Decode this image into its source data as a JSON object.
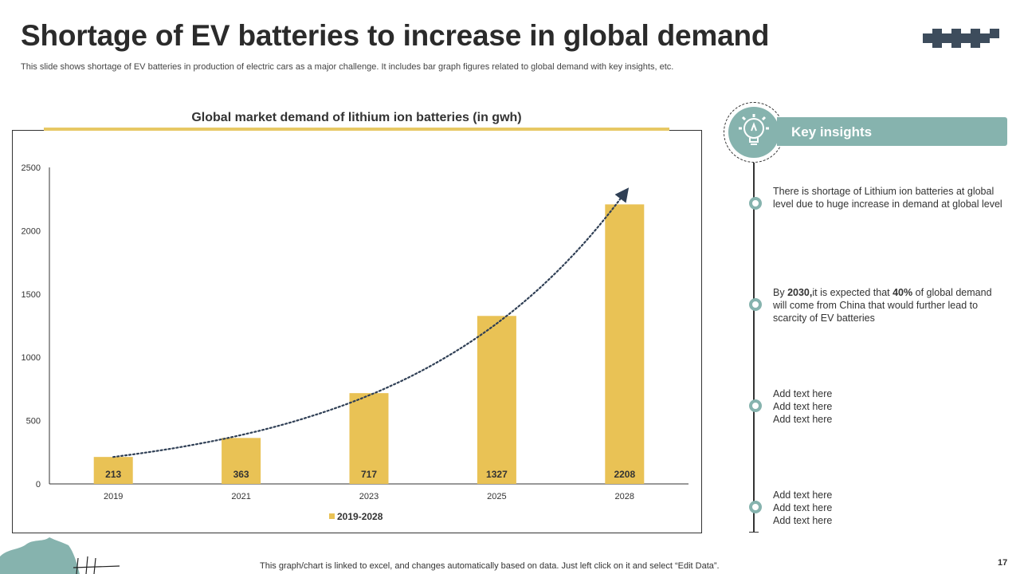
{
  "page": {
    "title": "Shortage of EV batteries to increase in global demand",
    "subtitle": "This slide shows shortage of EV batteries in production of electric cars as a major challenge. It includes bar graph figures related to global demand with key insights, etc.",
    "footer": "This graph/chart is linked to excel, and changes automatically based on data. Just left click on it and select “Edit Data”.",
    "page_number": "17"
  },
  "colors": {
    "bar": "#e9c255",
    "accent_teal": "#86b3ae",
    "trend": "#2f3f55",
    "checker": "#3d4c5c"
  },
  "chart_data": {
    "type": "bar",
    "title": "Global market demand of lithium ion batteries (in gwh)",
    "categories": [
      "2019",
      "2021",
      "2023",
      "2025",
      "2028"
    ],
    "series": [
      {
        "name": "2019-2028",
        "values": [
          213,
          363,
          717,
          1327,
          2208
        ]
      }
    ],
    "data_labels": [
      "213",
      "363",
      "717",
      "1327",
      "2208"
    ],
    "ylim": [
      0,
      2500
    ],
    "yticks": [
      "0",
      "500",
      "1000",
      "1500",
      "2000",
      "2500"
    ],
    "xlabel": "",
    "ylabel": "",
    "legend": "bottom-center",
    "trendline": "exponential, dotted with arrow"
  },
  "insights": {
    "heading": "Key insights",
    "bulb_icon": "lightbulb-gear-icon",
    "items": [
      {
        "text": "There is shortage of Lithium ion batteries at global level due to huge increase in demand at global level"
      },
      {
        "pre": "By ",
        "bold1": "2030,",
        "mid": "it is expected that ",
        "bold2": "40%",
        "post": " of global demand will come from China that would further lead to scarcity of EV batteries"
      },
      {
        "lines": [
          "Add text here",
          "Add text here",
          "Add text here"
        ]
      },
      {
        "lines": [
          "Add text here",
          "Add text here",
          "Add text here"
        ]
      }
    ]
  }
}
